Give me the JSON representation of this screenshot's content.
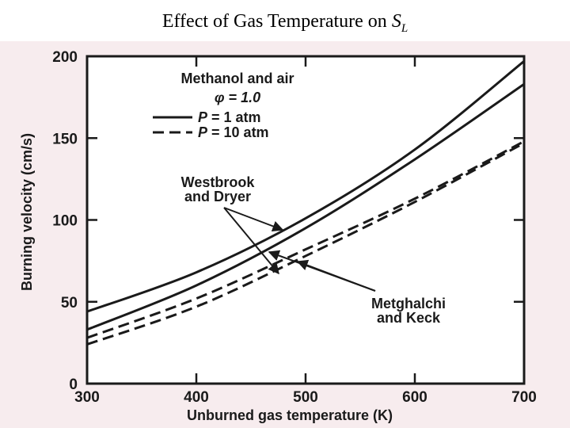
{
  "title": {
    "text": "Effect of Gas Temperature on ",
    "symbol": "S",
    "subscript": "L"
  },
  "chart_data": {
    "type": "line",
    "xlabel": "Unburned gas temperature (K)",
    "ylabel": "Burning velocity (cm/s)",
    "xlim": [
      300,
      700
    ],
    "ylim": [
      0,
      200
    ],
    "xticks": [
      300,
      400,
      500,
      600,
      700
    ],
    "yticks": [
      0,
      50,
      100,
      150,
      200
    ],
    "legend": {
      "heading": [
        "Methanol and air",
        "φ = 1.0"
      ],
      "entries": [
        {
          "var": "P",
          "text": " = 1 atm",
          "style": "solid"
        },
        {
          "var": "P",
          "text": " = 10 atm",
          "style": "dashed"
        }
      ]
    },
    "annotations": [
      {
        "lines": [
          "Westbrook",
          "and Dryer"
        ]
      },
      {
        "lines": [
          "Metghalchi",
          "and Keck"
        ]
      }
    ],
    "series": [
      {
        "style": "solid",
        "x": [
          300,
          400,
          500,
          600,
          700
        ],
        "y": [
          44,
          68,
          101,
          143,
          197
        ]
      },
      {
        "style": "solid",
        "x": [
          300,
          400,
          500,
          600,
          700
        ],
        "y": [
          33,
          60,
          95,
          137,
          183
        ]
      },
      {
        "style": "dashed",
        "x": [
          300,
          400,
          500,
          600,
          700
        ],
        "y": [
          28,
          52,
          82,
          113,
          148
        ]
      },
      {
        "style": "dashed",
        "x": [
          300,
          400,
          500,
          600,
          700
        ],
        "y": [
          24,
          47,
          78,
          111,
          147
        ]
      }
    ],
    "grid": false
  },
  "colors": {
    "line": "#1a1a1a",
    "scan_background": "#f7ecee",
    "plot_background": "#ffffff"
  }
}
